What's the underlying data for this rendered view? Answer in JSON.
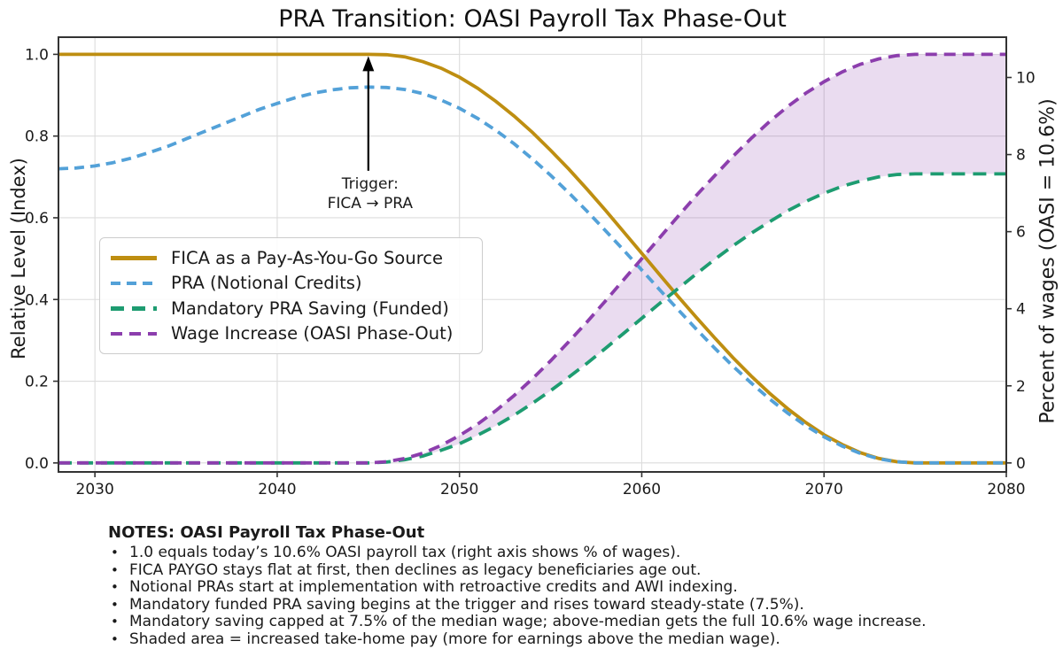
{
  "chart_data": {
    "type": "line",
    "title": "PRA Transition: OASI Payroll Tax Phase-Out",
    "ylabel_left": "Relative Level (Index)",
    "ylabel_right": "Percent of wages (OASI = 10.6%)",
    "xlim": [
      2028,
      2080
    ],
    "ylim": [
      -0.022,
      1.042
    ],
    "right_axis_scale": 10.6,
    "grid": true,
    "legend_position": "center-left",
    "x_ticks": {
      "values": [
        2030,
        2040,
        2050,
        2060,
        2070,
        2080
      ],
      "labels": [
        "2030",
        "2040",
        "2050",
        "2060",
        "2070",
        "2080"
      ]
    },
    "y_ticks_left": {
      "values": [
        0.0,
        0.2,
        0.4,
        0.6,
        0.8,
        1.0
      ],
      "labels": [
        "0.0",
        "0.2",
        "0.4",
        "0.6",
        "0.8",
        "1.0"
      ]
    },
    "y_ticks_right": {
      "values": [
        0,
        2,
        4,
        6,
        8,
        10
      ],
      "labels": [
        "0",
        "2",
        "4",
        "6",
        "8",
        "10"
      ]
    },
    "annotation": {
      "line1": "Trigger:",
      "line2": "FICA → PRA",
      "year": 2045,
      "tip_v": 1.0,
      "base_v": 0.715
    },
    "x": [
      2028,
      2029,
      2030,
      2031,
      2032,
      2033,
      2034,
      2035,
      2036,
      2037,
      2038,
      2039,
      2040,
      2041,
      2042,
      2043,
      2044,
      2045,
      2046,
      2047,
      2048,
      2049,
      2050,
      2051,
      2052,
      2053,
      2054,
      2055,
      2056,
      2057,
      2058,
      2059,
      2060,
      2061,
      2062,
      2063,
      2064,
      2065,
      2066,
      2067,
      2068,
      2069,
      2070,
      2071,
      2072,
      2073,
      2074,
      2075,
      2076,
      2077,
      2078,
      2079,
      2080
    ],
    "series": [
      {
        "name": "FICA as a Pay-As-You-Go Source",
        "color": "#BE8E11",
        "style": "solid",
        "width": 3.8,
        "values": [
          1,
          1,
          1,
          1,
          1,
          1,
          1,
          1,
          1,
          1,
          1,
          1,
          1,
          1,
          1,
          1,
          1,
          1,
          0.999,
          0.994,
          0.982,
          0.966,
          0.944,
          0.917,
          0.885,
          0.849,
          0.809,
          0.765,
          0.719,
          0.67,
          0.619,
          0.566,
          0.513,
          0.46,
          0.407,
          0.356,
          0.306,
          0.258,
          0.213,
          0.171,
          0.133,
          0.099,
          0.069,
          0.045,
          0.025,
          0.011,
          0.003,
          0,
          0,
          0,
          0,
          0,
          0
        ]
      },
      {
        "name": "PRA (Notional Credits)",
        "color": "#53A1D8",
        "style": "dashed",
        "width": 3.8,
        "values": [
          0.72,
          0.722,
          0.727,
          0.735,
          0.746,
          0.76,
          0.775,
          0.793,
          0.811,
          0.829,
          0.847,
          0.865,
          0.88,
          0.894,
          0.905,
          0.913,
          0.918,
          0.92,
          0.919,
          0.914,
          0.904,
          0.888,
          0.868,
          0.843,
          0.814,
          0.781,
          0.744,
          0.704,
          0.661,
          0.616,
          0.569,
          0.521,
          0.472,
          0.423,
          0.375,
          0.327,
          0.281,
          0.237,
          0.196,
          0.157,
          0.122,
          0.091,
          0.064,
          0.041,
          0.023,
          0.01,
          0.003,
          0,
          0,
          0,
          0,
          0,
          0
        ]
      },
      {
        "name": "Mandatory PRA Saving (Funded)",
        "color": "#1E9C71",
        "style": "long-dash",
        "width": 3.8,
        "values": [
          0,
          0,
          0,
          0,
          0,
          0,
          0,
          0,
          0,
          0,
          0,
          0,
          0,
          0,
          0,
          0,
          0,
          0,
          0.002,
          0.008,
          0.017,
          0.031,
          0.047,
          0.068,
          0.091,
          0.117,
          0.146,
          0.177,
          0.21,
          0.244,
          0.28,
          0.317,
          0.354,
          0.391,
          0.427,
          0.463,
          0.498,
          0.531,
          0.562,
          0.59,
          0.617,
          0.64,
          0.66,
          0.677,
          0.69,
          0.7,
          0.706,
          0.7075,
          0.7075,
          0.7075,
          0.7075,
          0.7075,
          0.7075
        ]
      },
      {
        "name": "Wage Increase (OASI Phase-Out)",
        "color": "#8C3EAD",
        "style": "dashed-wide",
        "width": 3.8,
        "values": [
          0,
          0,
          0,
          0,
          0,
          0,
          0,
          0,
          0,
          0,
          0,
          0,
          0,
          0,
          0,
          0,
          0,
          0,
          0.003,
          0.011,
          0.024,
          0.043,
          0.067,
          0.095,
          0.128,
          0.165,
          0.206,
          0.25,
          0.297,
          0.345,
          0.396,
          0.448,
          0.5,
          0.552,
          0.604,
          0.655,
          0.703,
          0.75,
          0.794,
          0.835,
          0.872,
          0.905,
          0.933,
          0.957,
          0.976,
          0.989,
          0.997,
          1,
          1,
          1,
          1,
          1,
          1
        ]
      }
    ],
    "fill_between": {
      "upper": 3,
      "lower": 2,
      "color": "rgba(140,62,173,0.18)"
    },
    "colors": {
      "grid": "#dcdcdc",
      "spine": "#333333",
      "annotation": "#000000"
    }
  },
  "notes": {
    "title": "NOTES: OASI Payroll Tax Phase-Out",
    "items": [
      "1.0 equals today’s 10.6% OASI payroll tax (right axis shows % of wages).",
      "FICA PAYGO stays flat at first, then declines as legacy beneficiaries age out.",
      "Notional PRAs start at implementation with retroactive credits and AWI indexing.",
      "Mandatory funded PRA saving begins at the trigger and rises toward steady-state (7.5%).",
      "Mandatory saving capped at 7.5% of the median wage; above-median gets the full 10.6% wage increase.",
      "Shaded area = increased take-home pay (more for earnings above the median wage)."
    ]
  }
}
